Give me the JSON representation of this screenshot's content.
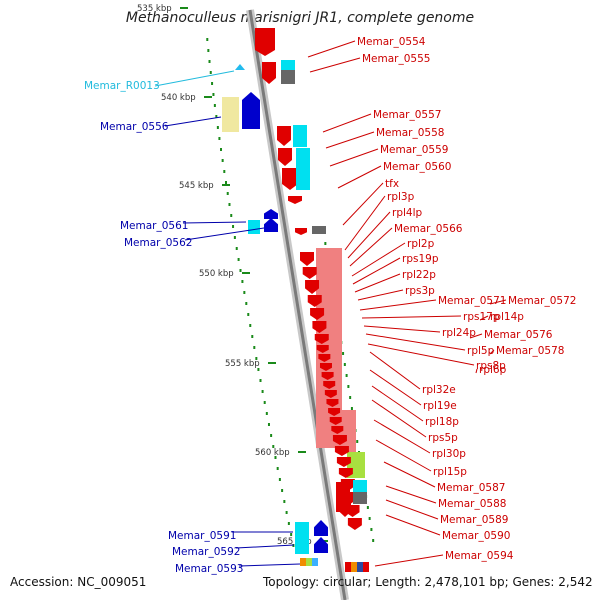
{
  "title": "Methanoculleus marisnigri JR1, complete genome",
  "footer": {
    "accession": "Accession: NC_009051",
    "topology": "Topology: circular; Length: 2,478,101 bp; Genes: 2,542"
  },
  "colors": {
    "forward_gene": "#e00000",
    "reverse_gene": "#0000cc",
    "rna_gene": "#22bbee",
    "cyan_feature": "#00e0f0",
    "gray_feature": "#666666",
    "pink_feature": "#f08080",
    "yellow_feature": "#f0e8a0",
    "lime_feature": "#a8e040"
  },
  "kbp_labels": [
    "535 kbp",
    "540 kbp",
    "545 kbp",
    "550 kbp",
    "555 kbp",
    "560 kbp",
    "565 kbp"
  ],
  "right_labels": [
    {
      "text": "Memar_0554",
      "color": "#cc0000"
    },
    {
      "text": "Memar_0555",
      "color": "#cc0000"
    },
    {
      "text": "Memar_0557",
      "color": "#cc0000"
    },
    {
      "text": "Memar_0558",
      "color": "#cc0000"
    },
    {
      "text": "Memar_0559",
      "color": "#cc0000"
    },
    {
      "text": "Memar_0560",
      "color": "#cc0000"
    },
    {
      "text": "tfx",
      "color": "#cc0000"
    },
    {
      "text": "rpl3p",
      "color": "#cc0000"
    },
    {
      "text": "rpl4lp",
      "color": "#cc0000"
    },
    {
      "text": "Memar_0566",
      "color": "#cc0000"
    },
    {
      "text": "rpl2p",
      "color": "#cc0000"
    },
    {
      "text": "rps19p",
      "color": "#cc0000"
    },
    {
      "text": "rpl22p",
      "color": "#cc0000"
    },
    {
      "text": "rps3p",
      "color": "#cc0000"
    },
    {
      "text": "Memar_0571",
      "color": "#cc0000"
    },
    {
      "text": "Memar_0572",
      "color": "#cc0000"
    },
    {
      "text": "rps17p",
      "color": "#cc0000"
    },
    {
      "text": "rpl14p",
      "color": "#cc0000"
    },
    {
      "text": "rpl24p",
      "color": "#cc0000"
    },
    {
      "text": "Memar_0576",
      "color": "#cc0000"
    },
    {
      "text": "rpl5p",
      "color": "#cc0000"
    },
    {
      "text": "Memar_0578",
      "color": "#cc0000"
    },
    {
      "text": "rps8p",
      "color": "#cc0000"
    },
    {
      "text": "rpl6p",
      "color": "#cc0000"
    },
    {
      "text": "rpl32e",
      "color": "#cc0000"
    },
    {
      "text": "rpl19e",
      "color": "#cc0000"
    },
    {
      "text": "rpl18p",
      "color": "#cc0000"
    },
    {
      "text": "rps5p",
      "color": "#cc0000"
    },
    {
      "text": "rpl30p",
      "color": "#cc0000"
    },
    {
      "text": "rpl15p",
      "color": "#cc0000"
    },
    {
      "text": "Memar_0587",
      "color": "#cc0000"
    },
    {
      "text": "Memar_0588",
      "color": "#cc0000"
    },
    {
      "text": "Memar_0589",
      "color": "#cc0000"
    },
    {
      "text": "Memar_0590",
      "color": "#cc0000"
    },
    {
      "text": "Memar_0594",
      "color": "#cc0000"
    }
  ],
  "left_labels": [
    {
      "text": "Memar_R0013",
      "color": "#22bbdd"
    },
    {
      "text": "Memar_0556",
      "color": "#0000aa"
    },
    {
      "text": "Memar_0561",
      "color": "#0000aa"
    },
    {
      "text": "Memar_0562",
      "color": "#0000aa"
    },
    {
      "text": "Memar_0591",
      "color": "#0000aa"
    },
    {
      "text": "Memar_0592",
      "color": "#0000aa"
    },
    {
      "text": "Memar_0593",
      "color": "#0000aa"
    }
  ]
}
